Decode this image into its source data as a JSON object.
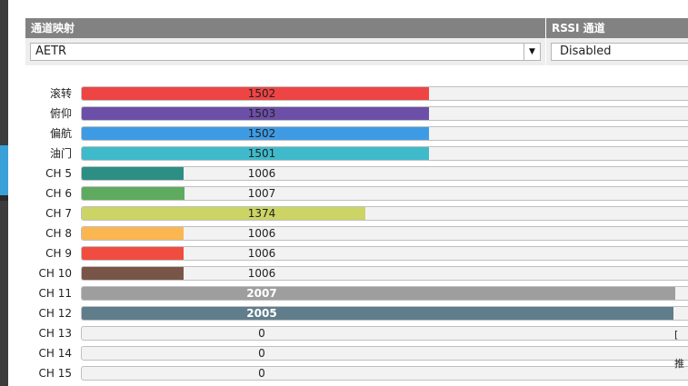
{
  "channel_map": {
    "header": "通道映射",
    "value": "AETR"
  },
  "rssi_channel": {
    "header": "RSSI 通道",
    "value": "Disabled"
  },
  "channels": [
    {
      "label": "滚转",
      "value": "1502",
      "fill_fraction": 0.562,
      "color": "#ee4444"
    },
    {
      "label": "俯仰",
      "value": "1503",
      "fill_fraction": 0.562,
      "color": "#6b4fa8"
    },
    {
      "label": "偏航",
      "value": "1502",
      "fill_fraction": 0.562,
      "color": "#3e9be3"
    },
    {
      "label": "油门",
      "value": "1501",
      "fill_fraction": 0.562,
      "color": "#3fbacb"
    },
    {
      "label": "CH 5",
      "value": "1006",
      "fill_fraction": 0.165,
      "color": "#2d8f84"
    },
    {
      "label": "CH 6",
      "value": "1007",
      "fill_fraction": 0.166,
      "color": "#5eab5f"
    },
    {
      "label": "CH 7",
      "value": "1374",
      "fill_fraction": 0.459,
      "color": "#cbd465"
    },
    {
      "label": "CH 8",
      "value": "1006",
      "fill_fraction": 0.165,
      "color": "#fbb652"
    },
    {
      "label": "CH 9",
      "value": "1006",
      "fill_fraction": 0.165,
      "color": "#f04c40"
    },
    {
      "label": "CH 10",
      "value": "1006",
      "fill_fraction": 0.165,
      "color": "#795548"
    },
    {
      "label": "CH 11",
      "value": "2007",
      "fill_fraction": 0.96,
      "color": "#9e9e9e"
    },
    {
      "label": "CH 12",
      "value": "2005",
      "fill_fraction": 0.958,
      "color": "#607d8b"
    },
    {
      "label": "CH 13",
      "value": "0",
      "fill_fraction": 0,
      "color": "#cccccc"
    },
    {
      "label": "CH 14",
      "value": "0",
      "fill_fraction": 0,
      "color": "#cccccc"
    },
    {
      "label": "CH 15",
      "value": "0",
      "fill_fraction": 0,
      "color": "#cccccc"
    }
  ],
  "edge_texts": [
    "[",
    "推"
  ]
}
